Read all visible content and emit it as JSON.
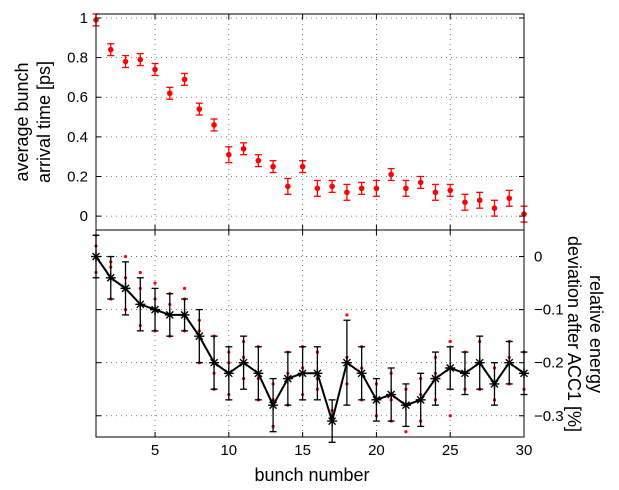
{
  "chart_data": [
    {
      "type": "scatter",
      "panel": "top",
      "ylabel": [
        "average bunch",
        "arrival time [ps]"
      ],
      "xlim": [
        1,
        30
      ],
      "ylim": [
        -0.07,
        1.02
      ],
      "yticks": [
        0,
        0.2,
        0.4,
        0.6,
        0.8,
        1
      ],
      "yticklabels": [
        "0",
        "0.2",
        "0.4",
        "0.6",
        "0.8",
        "1"
      ],
      "xticks": [
        5,
        10,
        15,
        20,
        25,
        30
      ],
      "grid": true,
      "color": "#ff0000",
      "series": [
        {
          "x": [
            1,
            2,
            3,
            4,
            5,
            6,
            7,
            8,
            9,
            10,
            11,
            12,
            13,
            14,
            15,
            16,
            17,
            18,
            19,
            20,
            21,
            22,
            23,
            24,
            25,
            26,
            27,
            28,
            29,
            30
          ],
          "y": [
            0.99,
            0.84,
            0.78,
            0.79,
            0.74,
            0.62,
            0.69,
            0.54,
            0.46,
            0.31,
            0.34,
            0.28,
            0.25,
            0.15,
            0.25,
            0.14,
            0.15,
            0.12,
            0.14,
            0.14,
            0.21,
            0.14,
            0.17,
            0.12,
            0.13,
            0.07,
            0.08,
            0.04,
            0.09,
            0.01
          ],
          "err": [
            0.03,
            0.03,
            0.03,
            0.03,
            0.03,
            0.03,
            0.03,
            0.03,
            0.03,
            0.04,
            0.03,
            0.03,
            0.03,
            0.04,
            0.03,
            0.04,
            0.03,
            0.04,
            0.03,
            0.04,
            0.03,
            0.04,
            0.03,
            0.04,
            0.03,
            0.04,
            0.04,
            0.04,
            0.04,
            0.04
          ]
        }
      ]
    },
    {
      "type": "line",
      "panel": "bottom",
      "xlabel": "bunch number",
      "ylabel": [
        "relative energy",
        "deviation after ACC1 [%]"
      ],
      "yaxis_side": "right",
      "xlim": [
        1,
        30
      ],
      "ylim": [
        -0.34,
        0.05
      ],
      "xticks": [
        5,
        10,
        15,
        20,
        25,
        30
      ],
      "xticklabels": [
        "5",
        "10",
        "15",
        "20",
        "25",
        "30"
      ],
      "yticks": [
        0,
        -0.1,
        -0.2,
        -0.3
      ],
      "yticklabels": [
        "0",
        "−0.1",
        "−0.2",
        "−0.3"
      ],
      "grid": true,
      "color": "#000000",
      "scatter_color": "#ff0000",
      "series": [
        {
          "x": [
            1,
            2,
            3,
            4,
            5,
            6,
            7,
            8,
            9,
            10,
            11,
            12,
            13,
            14,
            15,
            16,
            17,
            18,
            19,
            20,
            21,
            22,
            23,
            24,
            25,
            26,
            27,
            28,
            29,
            30
          ],
          "y": [
            0.0,
            -0.04,
            -0.06,
            -0.09,
            -0.1,
            -0.11,
            -0.11,
            -0.15,
            -0.2,
            -0.22,
            -0.2,
            -0.22,
            -0.28,
            -0.23,
            -0.22,
            -0.22,
            -0.31,
            -0.2,
            -0.22,
            -0.27,
            -0.26,
            -0.28,
            -0.27,
            -0.23,
            -0.21,
            -0.22,
            -0.2,
            -0.24,
            -0.2,
            -0.22
          ],
          "err": [
            0.04,
            0.04,
            0.05,
            0.05,
            0.04,
            0.04,
            0.03,
            0.05,
            0.05,
            0.05,
            0.05,
            0.05,
            0.05,
            0.05,
            0.05,
            0.05,
            0.04,
            0.08,
            0.05,
            0.04,
            0.05,
            0.04,
            0.05,
            0.05,
            0.04,
            0.04,
            0.05,
            0.04,
            0.04,
            0.04
          ],
          "scatter": [
            [
              0.04,
              -0.03,
              0.02
            ],
            [
              -0.01,
              -0.08,
              -0.02
            ],
            [
              0.0,
              -0.1,
              -0.04
            ],
            [
              -0.03,
              -0.13,
              -0.06
            ],
            [
              -0.05,
              -0.14,
              -0.08
            ],
            [
              -0.07,
              -0.15,
              -0.09
            ],
            [
              -0.06,
              -0.14,
              -0.08
            ],
            [
              -0.12,
              -0.2,
              -0.14
            ],
            [
              -0.15,
              -0.25,
              -0.22
            ],
            [
              -0.18,
              -0.26,
              -0.2
            ],
            [
              -0.16,
              -0.23,
              -0.19
            ],
            [
              -0.17,
              -0.27,
              -0.23
            ],
            [
              -0.24,
              -0.32,
              -0.27
            ],
            [
              -0.18,
              -0.28,
              -0.22
            ],
            [
              -0.17,
              -0.26,
              -0.21
            ],
            [
              -0.18,
              -0.25,
              -0.23
            ],
            [
              -0.29,
              -0.31,
              -0.3
            ],
            [
              -0.11,
              -0.24,
              -0.19
            ],
            [
              -0.17,
              -0.27,
              -0.21
            ],
            [
              -0.24,
              -0.3,
              -0.27
            ],
            [
              -0.22,
              -0.31,
              -0.27
            ],
            [
              -0.25,
              -0.33,
              -0.28
            ],
            [
              -0.23,
              -0.31,
              -0.26
            ],
            [
              -0.19,
              -0.27,
              -0.22
            ],
            [
              -0.16,
              -0.3,
              -0.21
            ],
            [
              -0.18,
              -0.25,
              -0.22
            ],
            [
              -0.16,
              -0.25,
              -0.2
            ],
            [
              -0.21,
              -0.27,
              -0.24
            ],
            [
              -0.16,
              -0.24,
              -0.19
            ],
            [
              -0.18,
              -0.25,
              -0.22
            ]
          ]
        }
      ]
    }
  ]
}
